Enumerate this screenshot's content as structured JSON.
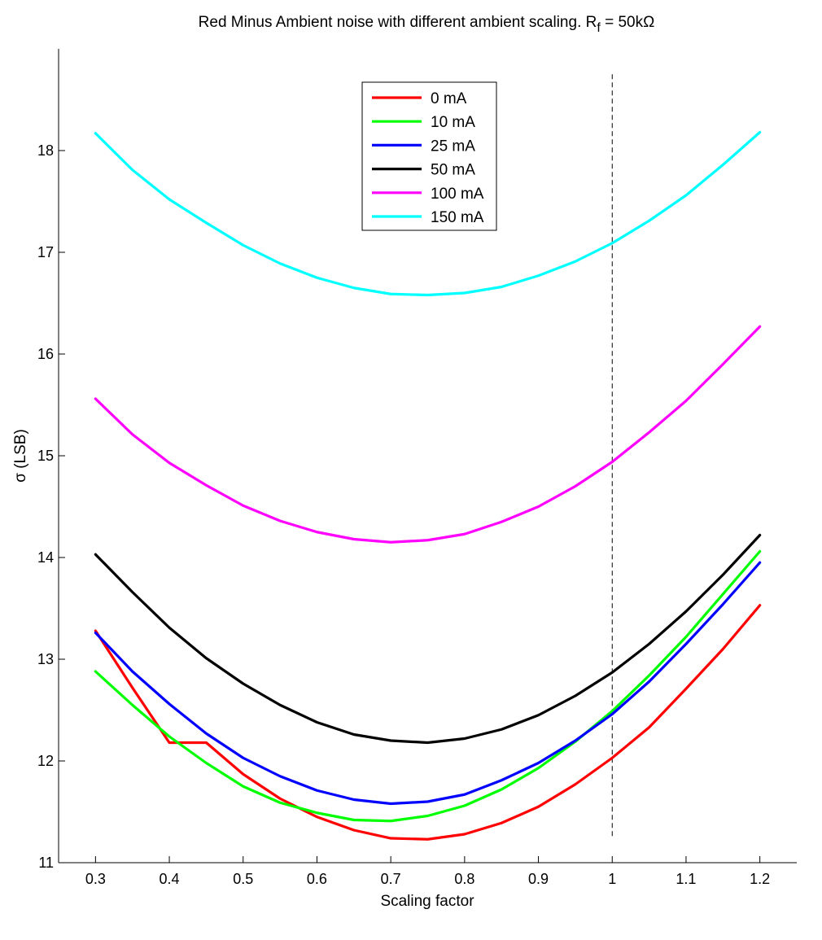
{
  "chart_data": {
    "type": "line",
    "title": "Red Minus Ambient noise with different ambient scaling. R",
    "title_subscript": "f",
    "title_suffix": " = 50kΩ",
    "xlabel": "Scaling factor",
    "ylabel": "σ (LSB)",
    "xlim": [
      0.25,
      1.25
    ],
    "ylim": [
      11,
      19
    ],
    "xticks": [
      0.3,
      0.4,
      0.5,
      0.6,
      0.7,
      0.8,
      0.9,
      1,
      1.1,
      1.2
    ],
    "xtick_labels": [
      "0.3",
      "0.4",
      "0.5",
      "0.6",
      "0.7",
      "0.8",
      "0.9",
      "1",
      "1.1",
      "1.2"
    ],
    "yticks": [
      11,
      12,
      13,
      14,
      15,
      16,
      17,
      18
    ],
    "ytick_labels": [
      "11",
      "12",
      "13",
      "14",
      "15",
      "16",
      "17",
      "18"
    ],
    "grid": false,
    "legend_position": "top-center",
    "reference_line": {
      "x": 1,
      "style": "dashed",
      "y_range": [
        11.25,
        18.75
      ]
    },
    "x": [
      0.3,
      0.35,
      0.4,
      0.45,
      0.5,
      0.55,
      0.6,
      0.65,
      0.7,
      0.75,
      0.8,
      0.85,
      0.9,
      0.95,
      1.0,
      1.05,
      1.1,
      1.15,
      1.2
    ],
    "series": [
      {
        "name": "0 mA",
        "color": "#ff0000",
        "values": [
          13.28,
          12.72,
          12.18,
          12.18,
          11.87,
          11.63,
          11.45,
          11.32,
          11.24,
          11.23,
          11.28,
          11.39,
          11.55,
          11.77,
          12.03,
          12.33,
          12.71,
          13.1,
          13.53
        ]
      },
      {
        "name": "10 mA",
        "color": "#00ff00",
        "values": [
          12.88,
          12.55,
          12.24,
          11.98,
          11.75,
          11.59,
          11.49,
          11.42,
          11.41,
          11.46,
          11.56,
          11.72,
          11.93,
          12.19,
          12.49,
          12.84,
          13.22,
          13.64,
          14.06
        ]
      },
      {
        "name": "25 mA",
        "color": "#0000ff",
        "values": [
          13.26,
          12.88,
          12.56,
          12.27,
          12.03,
          11.85,
          11.71,
          11.62,
          11.58,
          11.6,
          11.67,
          11.81,
          11.98,
          12.2,
          12.46,
          12.78,
          13.15,
          13.54,
          13.95
        ]
      },
      {
        "name": "50 mA",
        "color": "#000000",
        "values": [
          14.03,
          13.66,
          13.31,
          13.01,
          12.76,
          12.55,
          12.38,
          12.26,
          12.2,
          12.18,
          12.22,
          12.31,
          12.45,
          12.64,
          12.87,
          13.15,
          13.47,
          13.83,
          14.22
        ]
      },
      {
        "name": "100 mA",
        "color": "#ff00ff",
        "values": [
          15.56,
          15.21,
          14.93,
          14.71,
          14.51,
          14.36,
          14.25,
          14.18,
          14.15,
          14.17,
          14.23,
          14.35,
          14.5,
          14.7,
          14.94,
          15.23,
          15.54,
          15.9,
          16.27
        ]
      },
      {
        "name": "150 mA",
        "color": "#00ffff",
        "values": [
          18.17,
          17.81,
          17.52,
          17.29,
          17.07,
          16.89,
          16.75,
          16.65,
          16.59,
          16.58,
          16.6,
          16.66,
          16.77,
          16.91,
          17.09,
          17.31,
          17.56,
          17.86,
          18.18
        ]
      }
    ]
  }
}
